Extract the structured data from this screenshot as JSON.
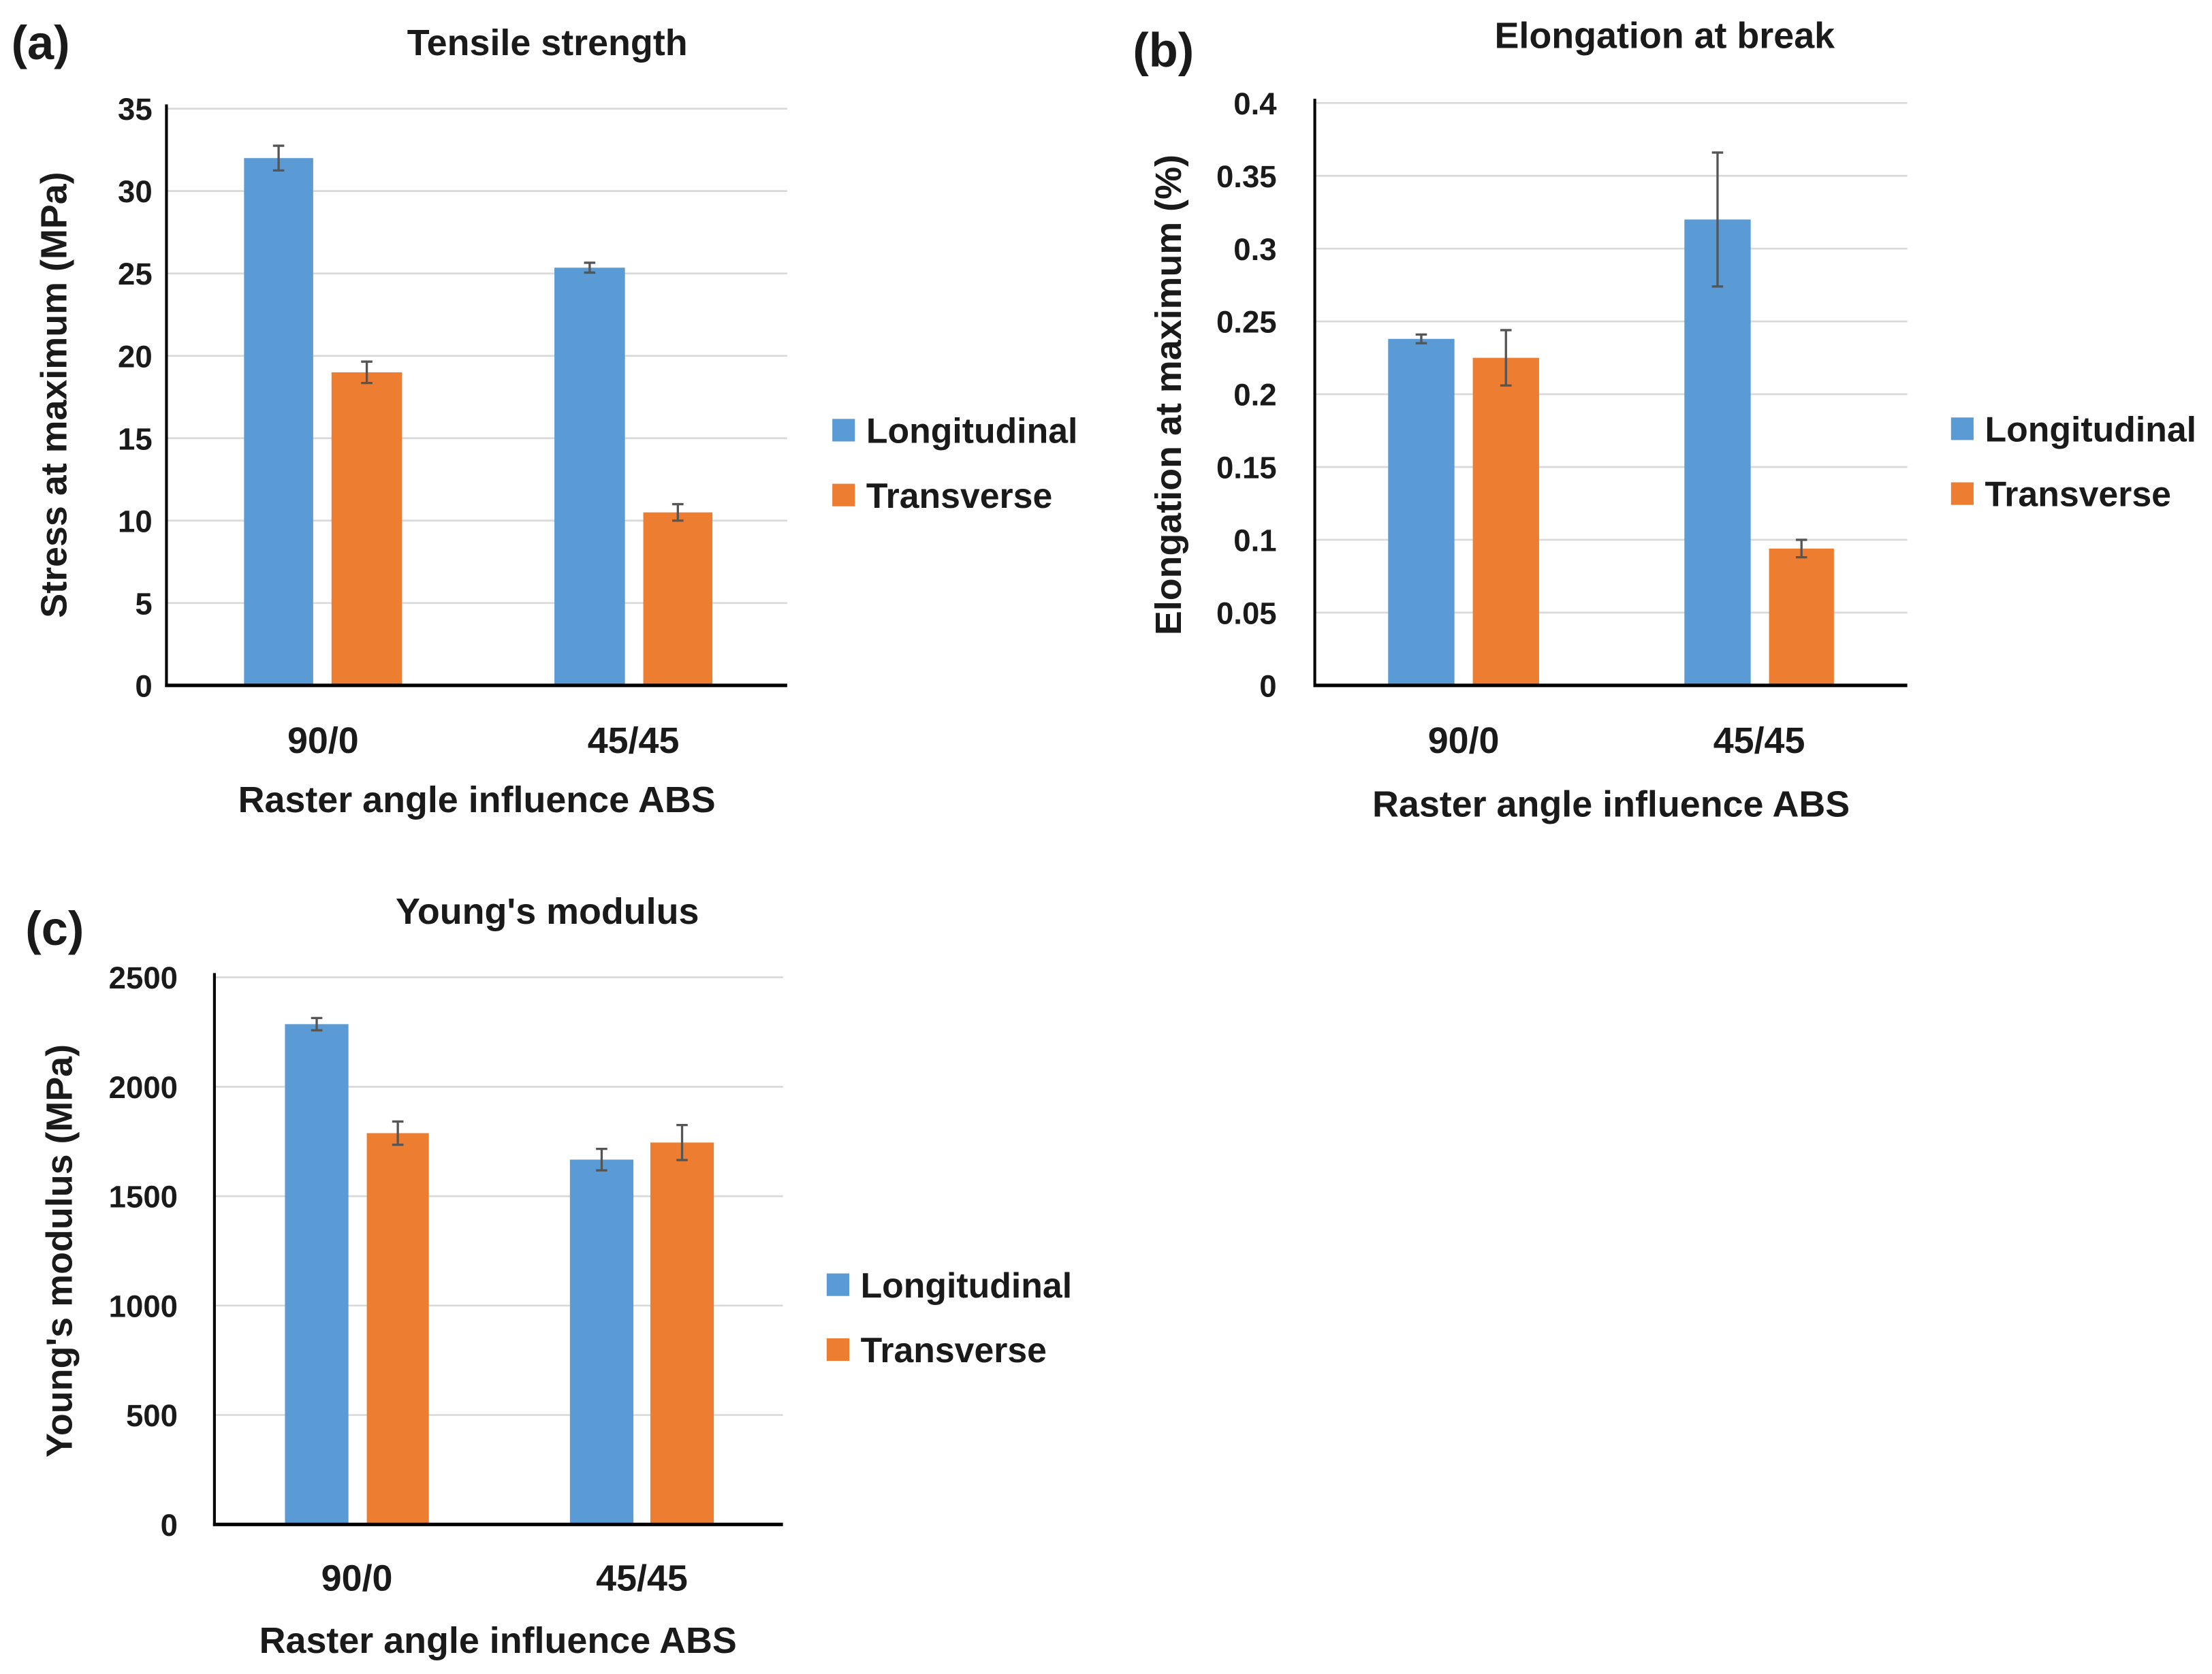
{
  "colors": {
    "Longitudinal": "#5b9bd5",
    "Transverse": "#ed7d31",
    "error_bar": "#555555",
    "grid": "#d9d9d9",
    "axis": "#000000"
  },
  "chart_data": [
    {
      "type": "bar",
      "panel_label": "(a)",
      "title": "Tensile strength",
      "xlabel": "Raster angle influence ABS",
      "ylabel": "Stress at maximum (MPa)",
      "categories": [
        "90/0",
        "45/45"
      ],
      "ylim": [
        0,
        35
      ],
      "yticks": [
        "0",
        "5",
        "10",
        "15",
        "20",
        "25",
        "30",
        "35"
      ],
      "ytick_values": [
        0,
        5,
        10,
        15,
        20,
        25,
        30,
        35
      ],
      "grid": true,
      "legend": "right",
      "series": [
        {
          "name": "Longitudinal",
          "values": [
            32.0,
            25.35
          ],
          "errors": [
            0.75,
            0.3
          ]
        },
        {
          "name": "Transverse",
          "values": [
            19.0,
            10.5
          ],
          "errors": [
            0.65,
            0.5
          ]
        }
      ]
    },
    {
      "type": "bar",
      "panel_label": "(b)",
      "title": "Elongation at break",
      "xlabel": "Raster angle influence ABS",
      "ylabel": "Elongation at maximum (%)",
      "categories": [
        "90/0",
        "45/45"
      ],
      "ylim": [
        0,
        0.4
      ],
      "yticks": [
        "0",
        "0.05",
        "0.1",
        "0.15",
        "0.2",
        "0.25",
        "0.3",
        "0.35",
        "0.4"
      ],
      "ytick_values": [
        0,
        0.05,
        0.1,
        0.15,
        0.2,
        0.25,
        0.3,
        0.35,
        0.4
      ],
      "grid": true,
      "legend": "right",
      "series": [
        {
          "name": "Longitudinal",
          "values": [
            0.238,
            0.32
          ],
          "errors": [
            0.003,
            0.046
          ]
        },
        {
          "name": "Transverse",
          "values": [
            0.225,
            0.094
          ],
          "errors": [
            0.019,
            0.006
          ]
        }
      ]
    },
    {
      "type": "bar",
      "panel_label": "(c)",
      "title": "Young's modulus",
      "xlabel": "Raster angle influence ABS",
      "ylabel": "Young's modulus (MPa)",
      "categories": [
        "90/0",
        "45/45"
      ],
      "ylim": [
        0,
        2500
      ],
      "yticks": [
        "0",
        "500",
        "1000",
        "1500",
        "2000",
        "2500"
      ],
      "ytick_values": [
        0,
        500,
        1000,
        1500,
        2000,
        2500
      ],
      "grid": true,
      "legend": "right",
      "series": [
        {
          "name": "Longitudinal",
          "values": [
            2286,
            1667
          ],
          "errors": [
            28,
            49
          ]
        },
        {
          "name": "Transverse",
          "values": [
            1788,
            1745
          ],
          "errors": [
            53,
            80
          ]
        }
      ]
    }
  ]
}
